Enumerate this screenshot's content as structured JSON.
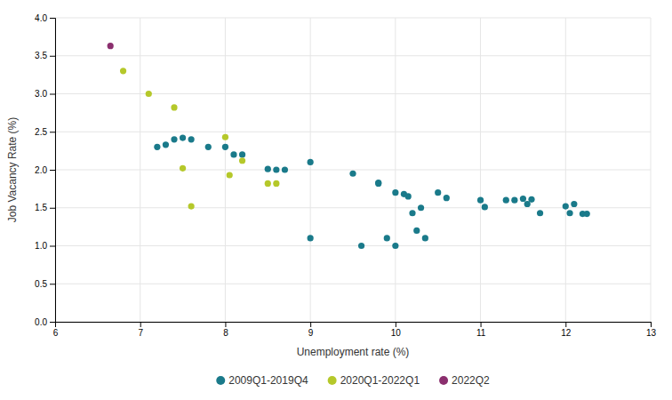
{
  "chart_data": {
    "type": "scatter",
    "xlabel": "Unemployment rate (%)",
    "ylabel": "Job Vacancy Rate (%)",
    "xlim": [
      6,
      13
    ],
    "ylim": [
      0.0,
      4.0
    ],
    "xticks": [
      6,
      7,
      8,
      9,
      10,
      11,
      12,
      13
    ],
    "yticks": [
      {
        "value": 0.0,
        "label": "0.0"
      },
      0.5,
      {
        "value": 1.0,
        "label": "1.0"
      },
      1.5,
      {
        "value": 2.0,
        "label": "2.0"
      },
      2.5,
      {
        "value": 3.0,
        "label": "3.0"
      },
      3.5,
      {
        "value": 4.0,
        "label": "4.0"
      }
    ],
    "grid": true,
    "legend": "bottom",
    "series": [
      {
        "name": "2009Q1-2019Q4",
        "color": "#1a7a8a",
        "x": [
          7.2,
          7.3,
          7.4,
          7.5,
          7.6,
          7.8,
          8.0,
          8.1,
          8.2,
          8.5,
          8.6,
          8.7,
          9.0,
          9.0,
          9.5,
          9.6,
          9.8,
          9.8,
          9.9,
          10.0,
          10.0,
          10.1,
          10.15,
          10.2,
          10.25,
          10.3,
          10.35,
          10.5,
          10.6,
          11.0,
          11.05,
          11.3,
          11.4,
          11.5,
          11.55,
          11.6,
          11.7,
          12.0,
          12.05,
          12.1,
          12.2,
          12.25
        ],
        "values": [
          2.3,
          2.33,
          2.4,
          2.42,
          2.4,
          2.3,
          2.3,
          2.2,
          2.2,
          2.01,
          2.0,
          2.0,
          2.1,
          1.1,
          1.95,
          1.0,
          1.83,
          1.82,
          1.1,
          1.7,
          1.0,
          1.68,
          1.65,
          1.43,
          1.2,
          1.5,
          1.1,
          1.7,
          1.63,
          1.6,
          1.51,
          1.6,
          1.6,
          1.62,
          1.55,
          1.61,
          1.43,
          1.52,
          1.43,
          1.55,
          1.42,
          1.42
        ]
      },
      {
        "name": "2020Q1-2022Q1",
        "color": "#b5c82a",
        "x": [
          6.8,
          7.1,
          7.4,
          7.5,
          7.6,
          8.0,
          8.05,
          8.2,
          8.5,
          8.6
        ],
        "values": [
          3.3,
          3.0,
          2.82,
          2.02,
          1.52,
          2.43,
          1.93,
          2.12,
          1.82,
          1.82
        ]
      },
      {
        "name": "2022Q2",
        "color": "#8b2f6e",
        "x": [
          6.65
        ],
        "values": [
          3.63
        ]
      }
    ]
  }
}
